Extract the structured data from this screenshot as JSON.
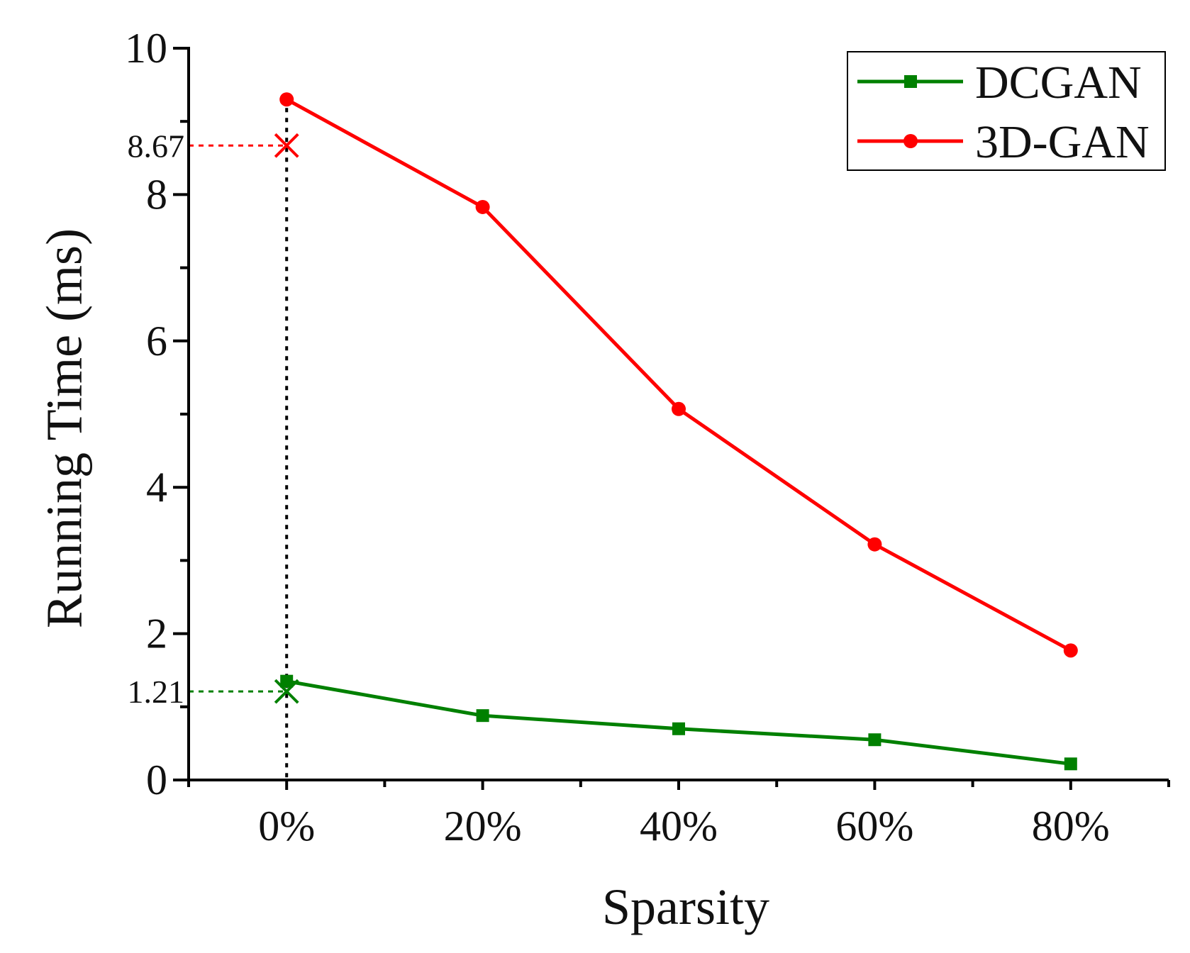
{
  "chart_data": {
    "type": "line",
    "categories": [
      "0%",
      "20%",
      "40%",
      "60%",
      "80%"
    ],
    "x": [
      0,
      20,
      40,
      60,
      80
    ],
    "xlim": [
      -10,
      90
    ],
    "ylim": [
      0,
      10
    ],
    "xlabel": "Sparsity",
    "ylabel": "Running Time (ms)",
    "y_major_ticks": [
      0,
      2,
      4,
      6,
      8,
      10
    ],
    "y_minor_ticks": [
      1,
      3,
      5,
      7,
      9
    ],
    "grid": false,
    "legend_position": "top-right",
    "series": [
      {
        "name": "DCGAN",
        "color": "#008000",
        "marker": "square",
        "values": [
          1.35,
          0.88,
          0.7,
          0.55,
          0.22
        ]
      },
      {
        "name": "3D-GAN",
        "color": "#ff0000",
        "marker": "circle",
        "values": [
          9.3,
          7.83,
          5.07,
          3.22,
          1.77
        ]
      }
    ],
    "annotations": [
      {
        "label": "8.67",
        "x": 0,
        "y": 8.67,
        "color": "#ff0000",
        "marker": "x"
      },
      {
        "label": "1.21",
        "x": 0,
        "y": 1.21,
        "color": "#008000",
        "marker": "x"
      }
    ],
    "reference_line": {
      "x": 0,
      "style": "dotted",
      "color": "#000000"
    }
  }
}
